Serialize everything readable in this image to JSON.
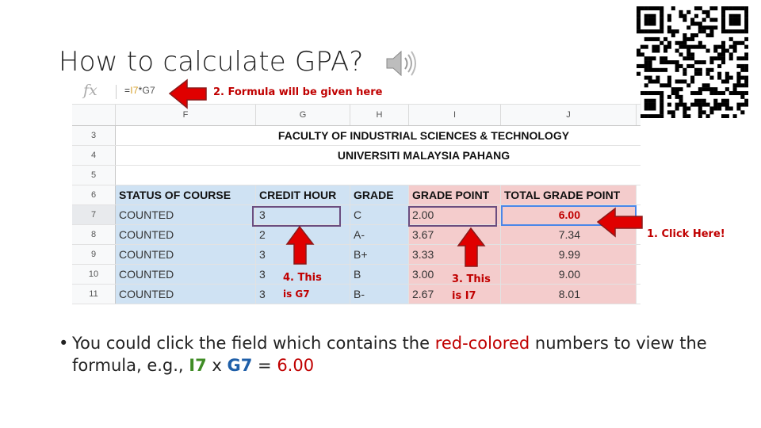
{
  "slide": {
    "title": "How to calculate GPA?"
  },
  "formula_bar": {
    "fx_label": "fx",
    "formula_eq": "=",
    "formula_ref1": "I7",
    "formula_op": "*",
    "formula_ref2": "G7"
  },
  "columns": [
    "F",
    "G",
    "H",
    "I",
    "J"
  ],
  "row_numbers": [
    "3",
    "4",
    "5",
    "6",
    "7",
    "8",
    "9",
    "10",
    "11"
  ],
  "titles": {
    "faculty": "FACULTY OF INDUSTRIAL SCIENCES & TECHNOLOGY",
    "university": "UNIVERSITI MALAYSIA PAHANG"
  },
  "table": {
    "headers": [
      "STATUS OF COURSE",
      "CREDIT HOUR",
      "GRADE",
      "GRADE POINT",
      "TOTAL GRADE POINT"
    ],
    "rows": [
      {
        "status": "COUNTED",
        "credit": "3",
        "grade": "C",
        "point": "2.00",
        "total": "6.00"
      },
      {
        "status": "COUNTED",
        "credit": "2",
        "grade": "A-",
        "point": "3.67",
        "total": "7.34"
      },
      {
        "status": "COUNTED",
        "credit": "3",
        "grade": "B+",
        "point": "3.33",
        "total": "9.99"
      },
      {
        "status": "COUNTED",
        "credit": "3",
        "grade": "B",
        "point": "3.00",
        "total": "9.00"
      },
      {
        "status": "COUNTED",
        "credit": "3",
        "grade": "B-",
        "point": "2.67",
        "total": "8.01"
      }
    ]
  },
  "callouts": {
    "formula": "2. Formula will be given here",
    "click": "1. Click Here!",
    "g7_line1": "4. This",
    "g7_line2": "is G7",
    "i7_line1": "3. This",
    "i7_line2": "is I7"
  },
  "bullet": {
    "part1": "You could click the field which contains the ",
    "red_colored": "red-colored",
    "part2": " numbers to view the formula, e.g., ",
    "i7": "I7",
    "x": " x ",
    "g7": "G7",
    "eq": " = ",
    "result": "6.00"
  },
  "colors": {
    "arrow_red": "#e00000",
    "highlight_blue": "#cfe2f3",
    "highlight_pink": "#f4cccc",
    "selection": "#4a86e8",
    "outline_purple": "#6b4d7f"
  }
}
